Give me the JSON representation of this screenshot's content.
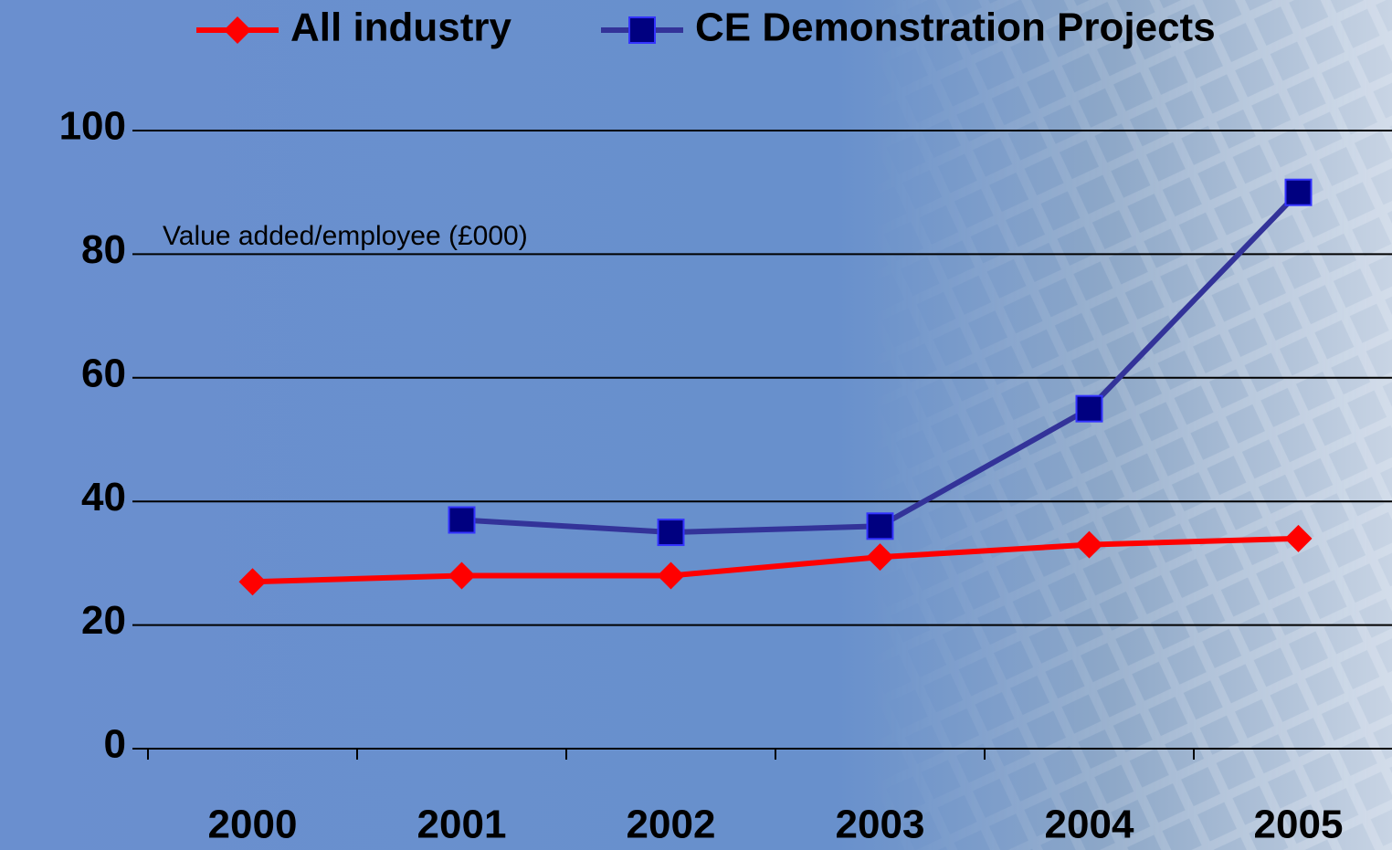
{
  "chart_data": {
    "type": "line",
    "annotation": "Value added/employee (£000)",
    "categories": [
      "2000",
      "2001",
      "2002",
      "2003",
      "2004",
      "2005"
    ],
    "series": [
      {
        "name": "All industry",
        "color": "#ff0000",
        "marker": "diamond",
        "values": [
          27,
          28,
          28,
          31,
          33,
          34
        ]
      },
      {
        "name": "CE Demonstration Projects",
        "color": "#333399",
        "marker": "square",
        "values": [
          null,
          37,
          35,
          36,
          55,
          90
        ]
      }
    ],
    "ylim": [
      0,
      100
    ],
    "yticks": [
      0,
      20,
      40,
      60,
      80,
      100
    ],
    "grid": true
  }
}
